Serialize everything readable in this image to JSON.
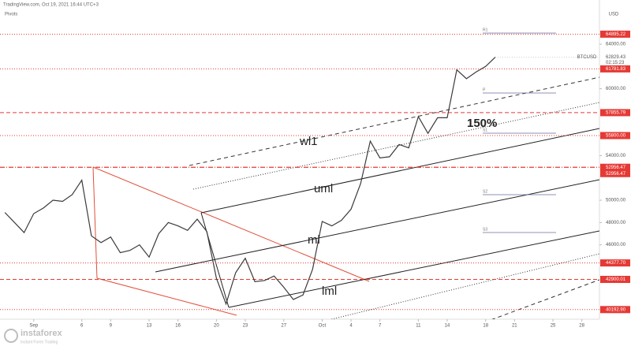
{
  "header": {
    "source": "TradingView.com, Oct 19, 2021 16:44 UTC+3",
    "indicator": "Pivots"
  },
  "chart_data": {
    "type": "line",
    "y_unit": "USD",
    "countdown": "02:15:23",
    "x": [
      "2021-08-29",
      "2021-08-30",
      "2021-08-31",
      "2021-09-01",
      "2021-09-02",
      "2021-09-03",
      "2021-09-04",
      "2021-09-05",
      "2021-09-06",
      "2021-09-07",
      "2021-09-08",
      "2021-09-09",
      "2021-09-10",
      "2021-09-11",
      "2021-09-12",
      "2021-09-13",
      "2021-09-14",
      "2021-09-15",
      "2021-09-16",
      "2021-09-17",
      "2021-09-18",
      "2021-09-19",
      "2021-09-20",
      "2021-09-21",
      "2021-09-22",
      "2021-09-23",
      "2021-09-24",
      "2021-09-25",
      "2021-09-26",
      "2021-09-27",
      "2021-09-28",
      "2021-09-29",
      "2021-09-30",
      "2021-10-01",
      "2021-10-02",
      "2021-10-03",
      "2021-10-04",
      "2021-10-05",
      "2021-10-06",
      "2021-10-07",
      "2021-10-08",
      "2021-10-09",
      "2021-10-10",
      "2021-10-11",
      "2021-10-12",
      "2021-10-13",
      "2021-10-14",
      "2021-10-15",
      "2021-10-16",
      "2021-10-17",
      "2021-10-18",
      "2021-10-19"
    ],
    "series": [
      {
        "name": "BTCUSD",
        "color": "#3a3a3a",
        "values": [
          48900,
          48000,
          47100,
          48800,
          49300,
          50000,
          49900,
          50500,
          51800,
          46800,
          46200,
          46700,
          45300,
          45500,
          46000,
          44900,
          47000,
          48000,
          47700,
          47300,
          48300,
          47200,
          43000,
          40700,
          43500,
          44800,
          42700,
          42800,
          43200,
          42200,
          41100,
          41500,
          43800,
          48100,
          47700,
          48200,
          49200,
          51500,
          55300,
          53800,
          53900,
          55000,
          54700,
          57500,
          56000,
          57400,
          57400,
          61700,
          60900,
          61500,
          62000,
          62829.43
        ]
      }
    ],
    "xlim": [
      "2021-08-28",
      "2021-10-30"
    ],
    "ylim": [
      39330,
      67960
    ],
    "yticks": [
      {
        "value": 64000,
        "label": "64000.00"
      },
      {
        "value": 60000,
        "label": "60000.00"
      },
      {
        "value": 54000,
        "label": "54000.00"
      },
      {
        "value": 50000,
        "label": "50000.00"
      },
      {
        "value": 48000,
        "label": "48000.00"
      },
      {
        "value": 46000,
        "label": "46000.00"
      }
    ],
    "xticks": [
      {
        "value": "2021-09-01",
        "label": "Sep"
      },
      {
        "value": "2021-09-06",
        "label": "6"
      },
      {
        "value": "2021-09-09",
        "label": "9"
      },
      {
        "value": "2021-09-13",
        "label": "13"
      },
      {
        "value": "2021-09-16",
        "label": "16"
      },
      {
        "value": "2021-09-20",
        "label": "20"
      },
      {
        "value": "2021-09-23",
        "label": "23"
      },
      {
        "value": "2021-09-27",
        "label": "27"
      },
      {
        "value": "2021-10-01",
        "label": "Oct"
      },
      {
        "value": "2021-10-04",
        "label": "4"
      },
      {
        "value": "2021-10-07",
        "label": "7"
      },
      {
        "value": "2021-10-11",
        "label": "11"
      },
      {
        "value": "2021-10-14",
        "label": "14"
      },
      {
        "value": "2021-10-18",
        "label": "18"
      },
      {
        "value": "2021-10-21",
        "label": "21"
      },
      {
        "value": "2021-10-25",
        "label": "25"
      },
      {
        "value": "2021-10-28",
        "label": "28"
      }
    ],
    "grid": false,
    "level_color": "#e53935",
    "levels": [
      {
        "value": 64895.22,
        "style": "dotted"
      },
      {
        "value": 61781.83,
        "style": "dotted"
      },
      {
        "value": 57855.79,
        "style": "dashed"
      },
      {
        "value": 55800,
        "label": "55800.00",
        "style": "dotted"
      },
      {
        "value": 52956.47,
        "style": "dashdot"
      },
      {
        "value": 52956.47,
        "style": "dashdot"
      },
      {
        "value": 44377.7,
        "label": "44377.70",
        "style": "dotted"
      },
      {
        "value": 42900.01,
        "style": "dashed"
      },
      {
        "value": 40192.9,
        "label": "40192.90",
        "style": "dotted"
      }
    ],
    "annotations": [
      "wl1",
      "uml",
      "ml",
      "lml",
      "150%"
    ],
    "pivots": [
      "R1",
      "P",
      "S1",
      "S2",
      "S3"
    ]
  },
  "watermark": {
    "brand": "instaforex",
    "tagline": "Instant Forex Trading"
  }
}
